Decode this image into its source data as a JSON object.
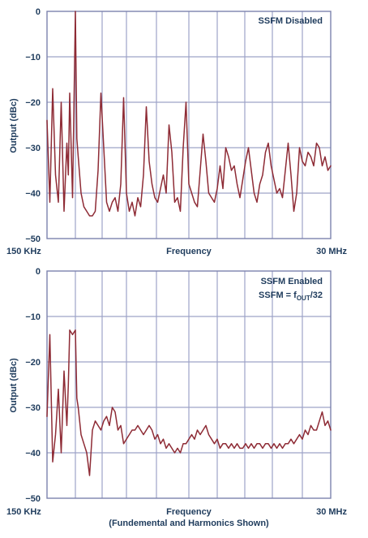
{
  "colors": {
    "trace": "#8e2b35",
    "text": "#1e3b5c"
  },
  "chart_data": [
    {
      "type": "line",
      "legend": [
        "SSFM Disabled"
      ],
      "legend_placement": "top-right",
      "xlabel": "Frequency",
      "ylabel": "Output (dBc)",
      "x_start_label": "150 KHz",
      "x_end_label": "30 MHz",
      "yticks": [
        "0",
        "−10",
        "−20",
        "−30",
        "−40",
        "−50"
      ],
      "ylim": [
        -50,
        0
      ],
      "xlim": [
        0,
        1
      ],
      "grid": true,
      "series": [
        {
          "x": [
            0.0,
            0.01,
            0.02,
            0.03,
            0.04,
            0.05,
            0.06,
            0.07,
            0.075,
            0.08,
            0.09,
            0.1,
            0.105,
            0.11,
            0.12,
            0.13,
            0.14,
            0.15,
            0.16,
            0.17,
            0.18,
            0.19,
            0.2,
            0.21,
            0.22,
            0.23,
            0.24,
            0.25,
            0.26,
            0.27,
            0.28,
            0.29,
            0.3,
            0.31,
            0.32,
            0.33,
            0.34,
            0.35,
            0.36,
            0.37,
            0.38,
            0.39,
            0.4,
            0.41,
            0.42,
            0.43,
            0.44,
            0.45,
            0.46,
            0.47,
            0.48,
            0.49,
            0.5,
            0.51,
            0.52,
            0.53,
            0.54,
            0.55,
            0.56,
            0.57,
            0.58,
            0.59,
            0.6,
            0.61,
            0.62,
            0.63,
            0.64,
            0.65,
            0.66,
            0.67,
            0.68,
            0.69,
            0.7,
            0.71,
            0.72,
            0.73,
            0.74,
            0.75,
            0.76,
            0.77,
            0.78,
            0.79,
            0.8,
            0.81,
            0.82,
            0.83,
            0.84,
            0.85,
            0.86,
            0.87,
            0.88,
            0.89,
            0.9,
            0.91,
            0.92,
            0.93,
            0.94,
            0.95,
            0.96,
            0.97,
            0.98,
            0.99,
            1.0
          ],
          "y": [
            -24,
            -42,
            -17,
            -36,
            -42,
            -20,
            -44,
            -29,
            -36,
            -18,
            -41,
            0,
            -28,
            -32,
            -40,
            -43,
            -44,
            -45,
            -45,
            -44,
            -35,
            -18,
            -30,
            -42,
            -44,
            -42,
            -41,
            -44,
            -38,
            -19,
            -40,
            -44,
            -42,
            -45,
            -41,
            -43,
            -36,
            -21,
            -33,
            -38,
            -41,
            -42,
            -39,
            -36,
            -40,
            -25,
            -31,
            -42,
            -41,
            -44,
            -30,
            -20,
            -38,
            -40,
            -42,
            -43,
            -35,
            -27,
            -33,
            -40,
            -41,
            -42,
            -39,
            -34,
            -39,
            -30,
            -32,
            -35,
            -34,
            -38,
            -41,
            -37,
            -33,
            -30,
            -35,
            -40,
            -42,
            -38,
            -36,
            -31,
            -29,
            -34,
            -37,
            -40,
            -39,
            -41,
            -35,
            -29,
            -36,
            -44,
            -40,
            -30,
            -33,
            -34,
            -31,
            -32,
            -34,
            -29,
            -30,
            -34,
            -32,
            -35,
            -34
          ]
        }
      ]
    },
    {
      "type": "line",
      "legend": [
        "SSFM Enabled",
        "SSFM = f",
        "OUT",
        "/32"
      ],
      "legend_placement": "top-right",
      "xlabel": "Frequency",
      "xlabel_sub": "(Fundemental and Harmonics Shown)",
      "ylabel": "Output (dBc)",
      "x_start_label": "150 KHz",
      "x_end_label": "30 MHz",
      "yticks": [
        "0",
        "−10",
        "−20",
        "−30",
        "−40",
        "−50"
      ],
      "ylim": [
        -50,
        0
      ],
      "xlim": [
        0,
        1
      ],
      "grid": true,
      "series": [
        {
          "x": [
            0.0,
            0.01,
            0.02,
            0.03,
            0.04,
            0.05,
            0.06,
            0.07,
            0.075,
            0.08,
            0.09,
            0.1,
            0.105,
            0.11,
            0.12,
            0.13,
            0.14,
            0.15,
            0.16,
            0.17,
            0.18,
            0.19,
            0.2,
            0.21,
            0.22,
            0.23,
            0.24,
            0.25,
            0.26,
            0.27,
            0.28,
            0.29,
            0.3,
            0.31,
            0.32,
            0.33,
            0.34,
            0.35,
            0.36,
            0.37,
            0.38,
            0.39,
            0.4,
            0.41,
            0.42,
            0.43,
            0.44,
            0.45,
            0.46,
            0.47,
            0.48,
            0.49,
            0.5,
            0.51,
            0.52,
            0.53,
            0.54,
            0.55,
            0.56,
            0.57,
            0.58,
            0.59,
            0.6,
            0.61,
            0.62,
            0.63,
            0.64,
            0.65,
            0.66,
            0.67,
            0.68,
            0.69,
            0.7,
            0.71,
            0.72,
            0.73,
            0.74,
            0.75,
            0.76,
            0.77,
            0.78,
            0.79,
            0.8,
            0.81,
            0.82,
            0.83,
            0.84,
            0.85,
            0.86,
            0.87,
            0.88,
            0.89,
            0.9,
            0.91,
            0.92,
            0.93,
            0.94,
            0.95,
            0.96,
            0.97,
            0.98,
            0.99,
            1.0
          ],
          "y": [
            -32,
            -14,
            -42,
            -36,
            -26,
            -40,
            -22,
            -34,
            -25,
            -13,
            -14,
            -13,
            -28,
            -30,
            -36,
            -38,
            -40,
            -45,
            -35,
            -33,
            -34,
            -35,
            -33,
            -32,
            -34,
            -30,
            -31,
            -35,
            -34,
            -38,
            -37,
            -36,
            -35,
            -35,
            -34,
            -35,
            -36,
            -35,
            -34,
            -35,
            -37,
            -36,
            -38,
            -37,
            -39,
            -38,
            -39,
            -40,
            -39,
            -40,
            -38,
            -38,
            -37,
            -36,
            -37,
            -35,
            -36,
            -35,
            -34,
            -36,
            -37,
            -38,
            -37,
            -39,
            -38,
            -38,
            -39,
            -38,
            -39,
            -38,
            -39,
            -39,
            -38,
            -39,
            -38,
            -39,
            -38,
            -38,
            -39,
            -38,
            -38,
            -39,
            -38,
            -39,
            -38,
            -39,
            -38,
            -38,
            -37,
            -38,
            -37,
            -36,
            -37,
            -35,
            -36,
            -34,
            -35,
            -35,
            -33,
            -31,
            -34,
            -33,
            -35
          ]
        }
      ]
    }
  ]
}
